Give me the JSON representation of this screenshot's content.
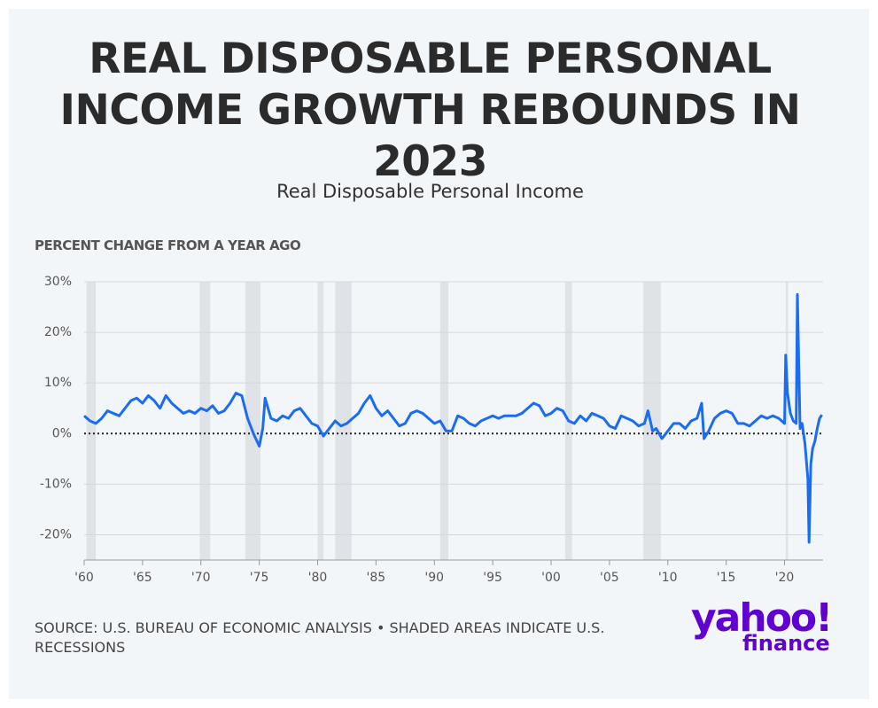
{
  "chart_data": {
    "type": "line",
    "title": "REAL DISPOSABLE PERSONAL INCOME GROWTH REBOUNDS IN 2023",
    "subtitle": "Real Disposable Personal Income",
    "y_label": "PERCENT CHANGE FROM A YEAR AGO",
    "source": "SOURCE: U.S. BUREAU OF ECONOMIC ANALYSIS • SHADED AREAS INDICATE U.S. RECESSIONS",
    "logo": [
      "yahoo!",
      "finance"
    ],
    "xlim": [
      1960,
      2023.3
    ],
    "ylim": [
      -25,
      30
    ],
    "xticks": [
      {
        "value": 1960,
        "label": "'60"
      },
      {
        "value": 1965,
        "label": "'65"
      },
      {
        "value": 1970,
        "label": "'70"
      },
      {
        "value": 1975,
        "label": "'75"
      },
      {
        "value": 1980,
        "label": "'80"
      },
      {
        "value": 1985,
        "label": "'85"
      },
      {
        "value": 1990,
        "label": "'90"
      },
      {
        "value": 1995,
        "label": "'95"
      },
      {
        "value": 2000,
        "label": "'00"
      },
      {
        "value": 2005,
        "label": "'05"
      },
      {
        "value": 2010,
        "label": "'10"
      },
      {
        "value": 2015,
        "label": "'15"
      },
      {
        "value": 2020,
        "label": "'20"
      }
    ],
    "yticks": [
      {
        "value": -20,
        "label": "-20%"
      },
      {
        "value": -10,
        "label": "-10%"
      },
      {
        "value": 0,
        "label": "0%"
      },
      {
        "value": 10,
        "label": "10%"
      },
      {
        "value": 20,
        "label": "20%"
      },
      {
        "value": 30,
        "label": "30%"
      }
    ],
    "grid": true,
    "recessions": [
      [
        1960.2,
        1961.0
      ],
      [
        1969.9,
        1970.8
      ],
      [
        1973.8,
        1975.1
      ],
      [
        1980.0,
        1980.5
      ],
      [
        1981.5,
        1982.9
      ],
      [
        1990.5,
        1991.2
      ],
      [
        2001.2,
        2001.8
      ],
      [
        2007.9,
        2009.4
      ],
      [
        2020.1,
        2020.3
      ]
    ],
    "recession_color": "#dfe2e6",
    "series": [
      {
        "name": "Real Disposable Personal Income",
        "color": "#1a6cf0",
        "x": [
          1960,
          1960.5,
          1961,
          1961.5,
          1962,
          1962.5,
          1963,
          1963.5,
          1964,
          1964.5,
          1965,
          1965.5,
          1966,
          1966.5,
          1967,
          1967.5,
          1968,
          1968.5,
          1969,
          1969.5,
          1970,
          1970.5,
          1971,
          1971.5,
          1972,
          1972.5,
          1973,
          1973.5,
          1974,
          1974.5,
          1975,
          1975.3,
          1975.5,
          1976,
          1976.5,
          1977,
          1977.5,
          1978,
          1978.5,
          1979,
          1979.5,
          1980,
          1980.5,
          1981,
          1981.5,
          1982,
          1982.5,
          1983,
          1983.5,
          1984,
          1984.5,
          1985,
          1985.5,
          1986,
          1986.5,
          1987,
          1987.5,
          1988,
          1988.5,
          1989,
          1989.5,
          1990,
          1990.5,
          1991,
          1991.5,
          1992,
          1992.5,
          1993,
          1993.5,
          1994,
          1994.5,
          1995,
          1995.5,
          1996,
          1996.5,
          1997,
          1997.5,
          1998,
          1998.5,
          1999,
          1999.5,
          2000,
          2000.5,
          2001,
          2001.5,
          2002,
          2002.5,
          2003,
          2003.5,
          2004,
          2004.5,
          2005,
          2005.5,
          2006,
          2006.5,
          2007,
          2007.5,
          2008,
          2008.3,
          2008.7,
          2009,
          2009.5,
          2010,
          2010.5,
          2011,
          2011.5,
          2012,
          2012.5,
          2012.9,
          2013.1,
          2013.5,
          2014,
          2014.5,
          2015,
          2015.5,
          2016,
          2016.5,
          2017,
          2017.5,
          2018,
          2018.5,
          2019,
          2019.5,
          2020,
          2020.1,
          2020.25,
          2020.5,
          2020.75,
          2021,
          2021.1,
          2021.33,
          2021.5,
          2021.75,
          2022,
          2022.1,
          2022.25,
          2022.4,
          2022.6,
          2022.8,
          2023,
          2023.2
        ],
        "values": [
          3.5,
          2.5,
          2,
          3,
          4.5,
          4,
          3.5,
          5,
          6.5,
          7,
          6,
          7.5,
          6.5,
          5,
          7.5,
          6,
          5,
          4,
          4.5,
          4,
          5,
          4.5,
          5.5,
          4,
          4.5,
          6,
          8,
          7.5,
          3,
          0,
          -2.5,
          1,
          7,
          3,
          2.5,
          3.5,
          3,
          4.5,
          5,
          3.5,
          2,
          1.5,
          -0.5,
          1,
          2.5,
          1.5,
          2,
          3,
          4,
          6,
          7.5,
          5,
          3.5,
          4.5,
          3,
          1.5,
          2,
          4,
          4.5,
          4,
          3,
          2,
          2.5,
          0.5,
          0.5,
          3.5,
          3,
          2,
          1.5,
          2.5,
          3,
          3.5,
          3,
          3.5,
          3.5,
          3.5,
          4,
          5,
          6,
          5.5,
          3.5,
          4,
          5,
          4.5,
          2.5,
          2,
          3.5,
          2.5,
          4,
          3.5,
          3,
          1.5,
          1,
          3.5,
          3,
          2.5,
          1.5,
          2,
          4.5,
          0.5,
          1,
          -1,
          0.5,
          2,
          2,
          1,
          2.5,
          3,
          6,
          -1,
          0.5,
          3,
          4,
          4.5,
          4,
          2,
          2,
          1.5,
          2.5,
          3.5,
          3,
          3.5,
          3,
          2,
          15.5,
          8,
          4,
          2.5,
          2,
          27.5,
          1,
          2,
          -2,
          -9,
          -21.5,
          -6,
          -3,
          -1.5,
          1,
          3,
          3.7
        ]
      }
    ]
  }
}
